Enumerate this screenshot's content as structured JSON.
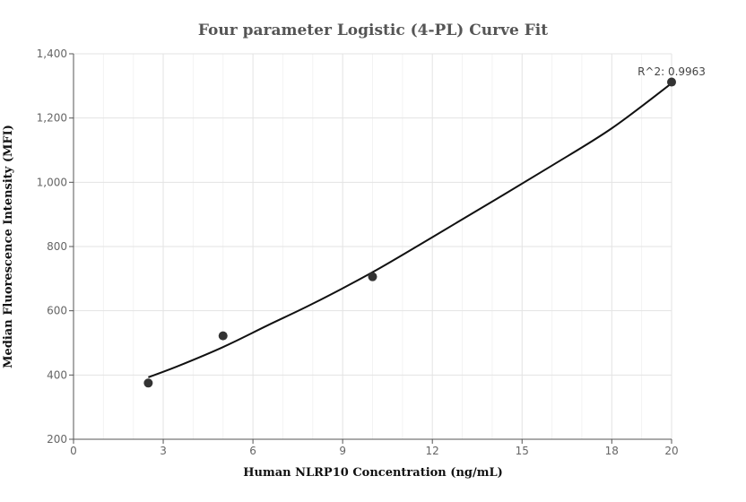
{
  "chart_data": {
    "type": "scatter",
    "title": "Four parameter Logistic (4-PL) Curve Fit",
    "xlabel": "Human NLRP10 Concentration (ng/mL)",
    "ylabel": "Median Fluorescence Intensity (MFI)",
    "xlim": [
      0,
      20
    ],
    "ylim": [
      200,
      1400
    ],
    "x_ticks": [
      0,
      3,
      6,
      9,
      12,
      15,
      18,
      20
    ],
    "y_ticks": [
      200,
      400,
      600,
      800,
      1000,
      1200,
      1400
    ],
    "x_tick_labels": [
      "0",
      "3",
      "6",
      "9",
      "12",
      "15",
      "18",
      "20"
    ],
    "y_tick_labels": [
      "200",
      "400",
      "600",
      "800",
      "1,000",
      "1,200",
      "1,400"
    ],
    "grid": true,
    "points": [
      {
        "x": 2.5,
        "y": 375
      },
      {
        "x": 5,
        "y": 522
      },
      {
        "x": 10,
        "y": 706
      },
      {
        "x": 20,
        "y": 1312
      }
    ],
    "fit_curve": {
      "x": [
        2.5,
        3.5,
        5,
        6.5,
        8,
        10,
        12,
        14,
        16,
        18,
        20
      ],
      "y": [
        393,
        428,
        487,
        555,
        622,
        720,
        829,
        940,
        1052,
        1168,
        1308
      ]
    },
    "annotation": "R^2: 0.9963"
  },
  "colors": {
    "points": "#333333",
    "curve": "#111111",
    "grid": "#e3e3e3"
  }
}
